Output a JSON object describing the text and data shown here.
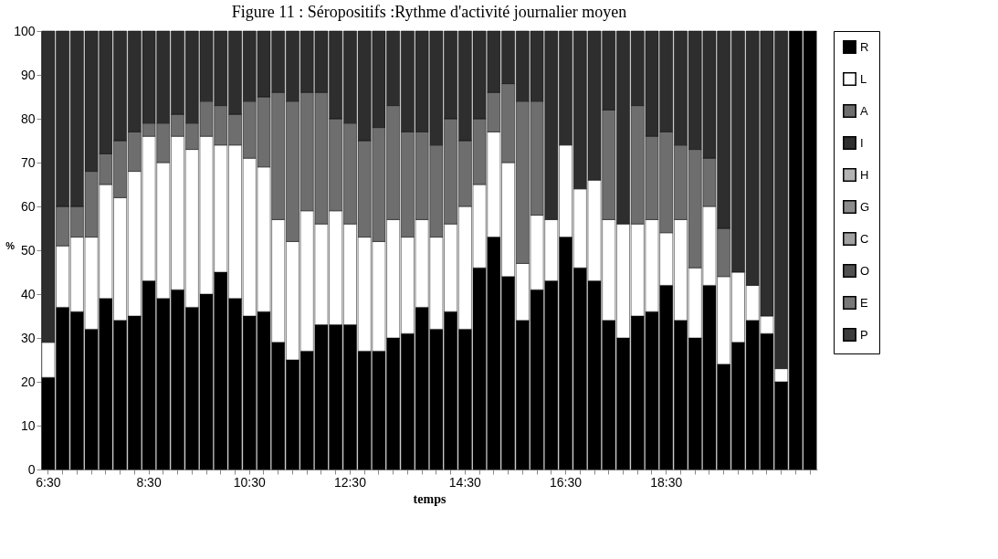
{
  "chart_data": {
    "type": "bar",
    "stacked": true,
    "title": "Figure 11 : Séropositifs :Rythme d'activité journalier moyen",
    "xlabel": "temps",
    "ylabel": "%",
    "categories": [
      "6:30",
      null,
      null,
      null,
      null,
      null,
      null,
      "8:30",
      null,
      null,
      null,
      null,
      null,
      null,
      "10:30",
      null,
      null,
      null,
      null,
      null,
      null,
      "12:30",
      null,
      null,
      null,
      null,
      null,
      null,
      null,
      "14:30",
      null,
      null,
      null,
      null,
      null,
      null,
      "16:30",
      null,
      null,
      null,
      null,
      null,
      null,
      "18:30",
      null,
      null,
      null,
      null,
      null,
      null,
      null,
      null,
      null,
      null
    ],
    "ylim": [
      0,
      100
    ],
    "yticks": [
      0,
      10,
      20,
      30,
      40,
      50,
      60,
      70,
      80,
      90,
      100
    ],
    "grid": false,
    "legend": "right",
    "series": [
      {
        "name": "R",
        "color": "#000000",
        "values": [
          21,
          37,
          36,
          32,
          39,
          34,
          35,
          43,
          39,
          41,
          37,
          40,
          45,
          39,
          35,
          36,
          29,
          25,
          27,
          33,
          33,
          33,
          27,
          27,
          30,
          31,
          37,
          32,
          36,
          32,
          46,
          53,
          44,
          34,
          41,
          43,
          53,
          46,
          43,
          34,
          30,
          35,
          36,
          42,
          34,
          30,
          42,
          24,
          29,
          34,
          31,
          20,
          100,
          100
        ]
      },
      {
        "name": "L",
        "color": "#ffffff",
        "values": [
          8,
          14,
          17,
          21,
          26,
          28,
          33,
          33,
          31,
          35,
          36,
          36,
          29,
          35,
          36,
          33,
          28,
          27,
          32,
          23,
          26,
          23,
          26,
          25,
          27,
          22,
          20,
          21,
          20,
          28,
          19,
          24,
          26,
          13,
          17,
          14,
          21,
          18,
          23,
          23,
          26,
          21,
          21,
          12,
          23,
          16,
          18,
          20,
          16,
          8,
          4,
          3,
          0,
          0
        ]
      },
      {
        "name": "A",
        "color": "#6e6e6e",
        "values": [
          0,
          9,
          7,
          15,
          7,
          13,
          9,
          3,
          9,
          5,
          6,
          8,
          9,
          7,
          13,
          16,
          29,
          32,
          27,
          30,
          21,
          23,
          22,
          26,
          26,
          24,
          20,
          21,
          24,
          15,
          15,
          9,
          18,
          37,
          26,
          0,
          0,
          0,
          0,
          25,
          0,
          27,
          19,
          23,
          17,
          27,
          11,
          11,
          0,
          0,
          0,
          0,
          0,
          0
        ]
      },
      {
        "name": "I",
        "color": "#2e2e2e",
        "values": [
          71,
          40,
          40,
          32,
          28,
          25,
          23,
          21,
          21,
          19,
          21,
          16,
          17,
          19,
          16,
          15,
          14,
          16,
          14,
          14,
          20,
          21,
          25,
          22,
          17,
          23,
          23,
          26,
          20,
          25,
          20,
          14,
          12,
          16,
          16,
          43,
          26,
          36,
          34,
          18,
          44,
          17,
          24,
          23,
          26,
          27,
          29,
          45,
          55,
          58,
          65,
          77,
          0,
          0
        ]
      },
      {
        "name": "H",
        "color": "#b4b4b4",
        "values": [
          0,
          0,
          0,
          0,
          0,
          0,
          0,
          0,
          0,
          0,
          0,
          0,
          0,
          0,
          0,
          0,
          0,
          0,
          0,
          0,
          0,
          0,
          0,
          0,
          0,
          0,
          0,
          0,
          0,
          0,
          0,
          0,
          0,
          0,
          0,
          0,
          0,
          0,
          0,
          0,
          0,
          0,
          0,
          0,
          0,
          0,
          0,
          0,
          0,
          0,
          0,
          0,
          0,
          0
        ]
      },
      {
        "name": "G",
        "color": "#8c8c8c",
        "values": [
          0,
          0,
          0,
          0,
          0,
          0,
          0,
          0,
          0,
          0,
          0,
          0,
          0,
          0,
          0,
          0,
          0,
          0,
          0,
          0,
          0,
          0,
          0,
          0,
          0,
          0,
          0,
          0,
          0,
          0,
          0,
          0,
          0,
          0,
          0,
          0,
          0,
          0,
          0,
          0,
          0,
          0,
          0,
          0,
          0,
          0,
          0,
          0,
          0,
          0,
          0,
          0,
          0,
          0
        ]
      },
      {
        "name": "C",
        "color": "#a0a0a0",
        "values": [
          0,
          0,
          0,
          0,
          0,
          0,
          0,
          0,
          0,
          0,
          0,
          0,
          0,
          0,
          0,
          0,
          0,
          0,
          0,
          0,
          0,
          0,
          0,
          0,
          0,
          0,
          0,
          0,
          0,
          0,
          0,
          0,
          0,
          0,
          0,
          0,
          0,
          0,
          0,
          0,
          0,
          0,
          0,
          0,
          0,
          0,
          0,
          0,
          0,
          0,
          0,
          0,
          0,
          0
        ]
      },
      {
        "name": "O",
        "color": "#505050",
        "values": [
          0,
          0,
          0,
          0,
          0,
          0,
          0,
          0,
          0,
          0,
          0,
          0,
          0,
          0,
          0,
          0,
          0,
          0,
          0,
          0,
          0,
          0,
          0,
          0,
          0,
          0,
          0,
          0,
          0,
          0,
          0,
          0,
          0,
          0,
          0,
          0,
          0,
          0,
          0,
          0,
          0,
          0,
          0,
          0,
          0,
          0,
          0,
          0,
          0,
          0,
          0,
          0,
          0,
          0
        ]
      },
      {
        "name": "E",
        "color": "#787878",
        "values": [
          0,
          0,
          0,
          0,
          0,
          0,
          0,
          0,
          0,
          0,
          0,
          0,
          0,
          0,
          0,
          0,
          0,
          0,
          0,
          0,
          0,
          0,
          0,
          0,
          0,
          0,
          0,
          0,
          0,
          0,
          0,
          0,
          0,
          0,
          0,
          0,
          0,
          0,
          0,
          0,
          0,
          0,
          0,
          0,
          0,
          0,
          0,
          0,
          0,
          0,
          0,
          0,
          0,
          0
        ]
      },
      {
        "name": "P",
        "color": "#3c3c3c",
        "values": [
          0,
          0,
          0,
          0,
          0,
          0,
          0,
          0,
          0,
          0,
          0,
          0,
          0,
          0,
          0,
          0,
          0,
          0,
          0,
          0,
          0,
          0,
          0,
          0,
          0,
          0,
          0,
          0,
          0,
          0,
          0,
          0,
          0,
          0,
          0,
          0,
          0,
          0,
          0,
          0,
          0,
          0,
          0,
          0,
          0,
          0,
          0,
          0,
          0,
          0,
          0,
          0,
          0,
          0
        ]
      }
    ]
  }
}
